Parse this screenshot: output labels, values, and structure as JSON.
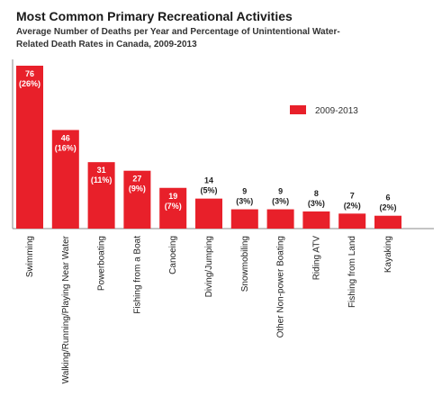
{
  "chart_data": {
    "type": "bar",
    "title": "Most Common Primary Recreational Activities",
    "subtitle": "Average Number of Deaths per Year and Percentage of Unintentional Water-Related Death Rates in Canada, 2009-2013",
    "categories": [
      "Swimming",
      "Walking/Running/Playing Near Water",
      "Powerboating",
      "Fishing from a Boat",
      "Canoeing",
      "Diving/Jumping",
      "Snowmobiling",
      "Other Non-power Boating",
      "Riding ATV",
      "Fishing from Land",
      "Kayaking"
    ],
    "series": [
      {
        "name": "2009-2013",
        "values": [
          76,
          46,
          31,
          27,
          19,
          14,
          9,
          9,
          8,
          7,
          6
        ],
        "percent_labels": [
          "(26%)",
          "(16%)",
          "(11%)",
          "(9%)",
          "(7%)",
          "(5%)",
          "(3%)",
          "(3%)",
          "(3%)",
          "(2%)",
          "(2%)"
        ]
      }
    ],
    "ylim": [
      0,
      76
    ],
    "grid": false,
    "legend_position": "top-right",
    "bar_color": "#e8202a"
  }
}
